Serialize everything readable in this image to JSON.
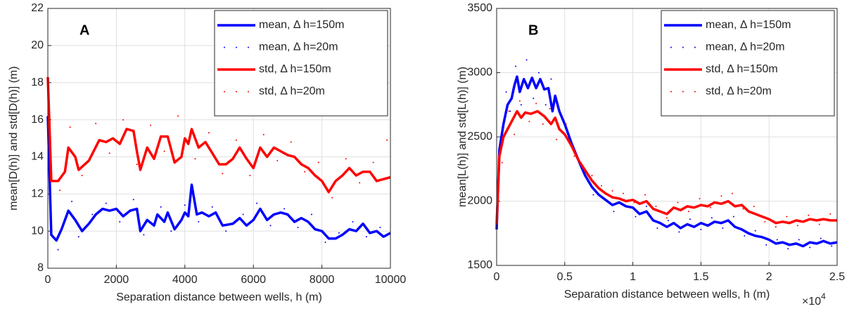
{
  "chart_data": [
    {
      "type": "line",
      "panel_label": "A",
      "xlabel": "Separation distance between wells, h (m)",
      "ylabel": "mean[D(h)] and std[D(h)] (m)",
      "xlim": [
        0,
        10000
      ],
      "ylim": [
        8,
        22
      ],
      "xticks": [
        0,
        2000,
        4000,
        6000,
        8000,
        10000
      ],
      "yticks": [
        8,
        10,
        12,
        14,
        16,
        18,
        20,
        22
      ],
      "grid": true,
      "legend": "upper right",
      "series": [
        {
          "name": "mean, Δ h=150m",
          "color": "#0000ff",
          "mode": "line",
          "x": [
            0,
            100,
            250,
            400,
            600,
            800,
            1000,
            1200,
            1400,
            1600,
            1800,
            2000,
            2200,
            2400,
            2600,
            2700,
            2900,
            3100,
            3200,
            3400,
            3500,
            3700,
            3900,
            4000,
            4100,
            4200,
            4350,
            4500,
            4700,
            4900,
            5100,
            5400,
            5600,
            5800,
            6000,
            6200,
            6400,
            6600,
            6800,
            7000,
            7200,
            7400,
            7600,
            7800,
            8000,
            8200,
            8400,
            8600,
            8800,
            9000,
            9200,
            9400,
            9600,
            9800,
            10000
          ],
          "values": [
            16.2,
            9.8,
            9.5,
            10.1,
            11.1,
            10.6,
            10.0,
            10.4,
            10.9,
            11.2,
            11.1,
            11.2,
            10.8,
            11.1,
            11.2,
            10.0,
            10.6,
            10.3,
            10.9,
            10.5,
            11.0,
            10.1,
            10.6,
            11.0,
            10.8,
            12.5,
            10.9,
            11.0,
            10.8,
            11.0,
            10.3,
            10.4,
            10.7,
            10.3,
            10.6,
            11.2,
            10.6,
            10.9,
            11.0,
            10.9,
            10.5,
            10.7,
            10.5,
            10.1,
            10.0,
            9.6,
            9.6,
            9.8,
            10.1,
            10.0,
            10.4,
            9.9,
            10.0,
            9.7,
            9.9
          ]
        },
        {
          "name": "mean, Δ h=20m",
          "color": "#0000ff",
          "mode": "markers",
          "x": [
            50,
            300,
            500,
            700,
            900,
            1300,
            1700,
            2100,
            2500,
            2800,
            3300,
            3600,
            4000,
            4400,
            4800,
            5200,
            5700,
            6100,
            6500,
            6900,
            7300,
            7700,
            8100,
            8500,
            8900,
            9300,
            9700
          ],
          "values": [
            12.5,
            9.0,
            10.6,
            11.6,
            9.7,
            10.9,
            11.5,
            10.5,
            11.7,
            9.8,
            11.3,
            10.0,
            11.4,
            10.5,
            11.3,
            10.0,
            10.9,
            11.5,
            10.3,
            11.2,
            10.2,
            10.9,
            9.4,
            9.9,
            10.5,
            9.7,
            10.2
          ]
        },
        {
          "name": "std, Δ h=150m",
          "color": "#ff0000",
          "mode": "line",
          "x": [
            0,
            100,
            300,
            500,
            600,
            800,
            900,
            1200,
            1500,
            1700,
            1900,
            2100,
            2300,
            2500,
            2600,
            2700,
            2900,
            3100,
            3300,
            3500,
            3700,
            3900,
            4000,
            4100,
            4200,
            4400,
            4600,
            4800,
            5000,
            5200,
            5400,
            5600,
            5800,
            6000,
            6200,
            6400,
            6600,
            6800,
            7000,
            7200,
            7400,
            7600,
            7800,
            8000,
            8200,
            8400,
            8600,
            8800,
            9000,
            9200,
            9400,
            9600,
            9800,
            10000
          ],
          "values": [
            18.3,
            12.7,
            12.7,
            13.2,
            14.5,
            14.0,
            13.3,
            13.8,
            14.9,
            14.8,
            15.0,
            14.7,
            15.5,
            15.4,
            14.3,
            13.3,
            14.5,
            13.9,
            15.1,
            15.1,
            13.7,
            14.0,
            15.0,
            14.7,
            15.5,
            14.5,
            14.8,
            14.2,
            13.6,
            13.6,
            13.9,
            14.5,
            13.9,
            13.4,
            14.5,
            14.0,
            14.5,
            14.3,
            14.1,
            14.0,
            13.6,
            13.4,
            13.0,
            12.7,
            12.1,
            12.7,
            13.0,
            13.4,
            13.0,
            13.2,
            13.2,
            12.7,
            12.8,
            12.9
          ]
        },
        {
          "name": "std, Δ h=20m",
          "color": "#ff0000",
          "mode": "markers",
          "x": [
            50,
            350,
            650,
            1000,
            1400,
            1800,
            2200,
            2600,
            3000,
            3400,
            3800,
            4300,
            4700,
            5100,
            5500,
            5900,
            6300,
            6700,
            7100,
            7500,
            7900,
            8300,
            8700,
            9100,
            9500,
            9900
          ],
          "values": [
            14.5,
            12.2,
            15.6,
            13.0,
            15.8,
            14.2,
            16.0,
            13.6,
            15.7,
            14.3,
            16.2,
            13.9,
            15.3,
            13.1,
            14.9,
            13.0,
            15.2,
            13.8,
            14.8,
            13.2,
            13.7,
            11.8,
            13.9,
            12.6,
            13.7,
            14.9
          ]
        }
      ]
    },
    {
      "type": "line",
      "panel_label": "B",
      "xlabel": "Separation distance between wells, h (m)",
      "ylabel": "mean[L(h)] and std[L(h)] (m)",
      "x_multiplier": "×10",
      "x_multiplier_exponent": "4",
      "xlim": [
        0,
        25000
      ],
      "ylim": [
        1500,
        3500
      ],
      "xticks": [
        0,
        {
          "value": 5000,
          "label": "0.5"
        },
        {
          "value": 10000,
          "label": "1"
        },
        {
          "value": 15000,
          "label": "1.5"
        },
        {
          "value": 20000,
          "label": "2"
        },
        {
          "value": 25000,
          "label": "2.5"
        }
      ],
      "yticks": [
        1500,
        2000,
        2500,
        3000,
        3500
      ],
      "grid": true,
      "legend": "upper right",
      "series": [
        {
          "name": "mean, Δ h=150m",
          "color": "#0000ff",
          "mode": "line",
          "x": [
            0,
            200,
            500,
            800,
            1100,
            1300,
            1500,
            1700,
            2000,
            2300,
            2600,
            2900,
            3200,
            3500,
            3800,
            4100,
            4300,
            4600,
            5000,
            5500,
            6000,
            6500,
            7000,
            7500,
            8000,
            8500,
            9000,
            9500,
            10000,
            10500,
            11000,
            11500,
            12000,
            12500,
            13000,
            13500,
            14000,
            14500,
            15000,
            15500,
            16000,
            16500,
            17000,
            17500,
            18000,
            18500,
            19000,
            19500,
            20000,
            20500,
            21000,
            21500,
            22000,
            22500,
            23000,
            23500,
            24000,
            24500,
            25000
          ],
          "values": [
            1780,
            2400,
            2600,
            2750,
            2800,
            2900,
            2970,
            2850,
            2950,
            2880,
            2960,
            2880,
            2950,
            2870,
            2880,
            2700,
            2820,
            2700,
            2600,
            2450,
            2320,
            2200,
            2110,
            2050,
            2010,
            1970,
            1990,
            1960,
            1950,
            1900,
            1920,
            1850,
            1830,
            1800,
            1830,
            1790,
            1820,
            1800,
            1830,
            1810,
            1840,
            1830,
            1850,
            1800,
            1780,
            1750,
            1730,
            1720,
            1700,
            1670,
            1680,
            1660,
            1670,
            1650,
            1680,
            1670,
            1690,
            1670,
            1680
          ]
        },
        {
          "name": "mean, Δ h=20m",
          "color": "#0000ff",
          "mode": "markers",
          "x": [
            300,
            700,
            1000,
            1400,
            1800,
            2200,
            2700,
            3100,
            3600,
            4000,
            4500,
            5200,
            5800,
            6400,
            7100,
            7800,
            8600,
            9400,
            10200,
            11000,
            11800,
            12600,
            13400,
            14200,
            15000,
            15800,
            16600,
            17400,
            18200,
            19000,
            19800,
            20600,
            21400,
            22200,
            23000,
            23800,
            24600
          ],
          "values": [
            2500,
            2850,
            2700,
            3050,
            2750,
            3100,
            2800,
            3000,
            2750,
            2950,
            2600,
            2550,
            2380,
            2250,
            2050,
            2080,
            1920,
            2010,
            1880,
            1960,
            1790,
            1850,
            1760,
            1860,
            1780,
            1870,
            1790,
            1880,
            1730,
            1770,
            1660,
            1700,
            1630,
            1700,
            1640,
            1710,
            1650
          ]
        },
        {
          "name": "std, Δ h=150m",
          "color": "#ff0000",
          "mode": "line",
          "x": [
            0,
            200,
            500,
            800,
            1200,
            1500,
            1800,
            2100,
            2500,
            3000,
            3500,
            4000,
            4300,
            4600,
            5000,
            5500,
            6000,
            6500,
            7000,
            7500,
            8000,
            8500,
            9000,
            9500,
            10000,
            10500,
            11000,
            11500,
            12000,
            12500,
            13000,
            13500,
            14000,
            14500,
            15000,
            15500,
            16000,
            16500,
            17000,
            17500,
            18000,
            18500,
            19000,
            19500,
            20000,
            20500,
            21000,
            21500,
            22000,
            22500,
            23000,
            23500,
            24000,
            24500,
            25000
          ],
          "values": [
            1820,
            2350,
            2500,
            2560,
            2640,
            2700,
            2650,
            2690,
            2680,
            2700,
            2660,
            2600,
            2650,
            2560,
            2520,
            2430,
            2320,
            2240,
            2160,
            2100,
            2060,
            2030,
            2020,
            2000,
            2010,
            1980,
            2000,
            1940,
            1920,
            1900,
            1950,
            1930,
            1960,
            1950,
            1970,
            1960,
            1990,
            1980,
            2000,
            1960,
            1970,
            1920,
            1900,
            1880,
            1860,
            1830,
            1840,
            1830,
            1850,
            1840,
            1860,
            1850,
            1860,
            1850,
            1850
          ]
        },
        {
          "name": "std, Δ h=20m",
          "color": "#ff0000",
          "mode": "markers",
          "x": [
            400,
            900,
            1300,
            1700,
            2400,
            2900,
            3400,
            3900,
            4400,
            5100,
            5700,
            6300,
            7000,
            7700,
            8500,
            9300,
            10100,
            10900,
            11700,
            12500,
            13300,
            14100,
            14900,
            15700,
            16500,
            17300,
            18100,
            18900,
            19700,
            20500,
            21300,
            22100,
            22900,
            23700,
            24500
          ],
          "values": [
            2300,
            2700,
            2520,
            2780,
            2620,
            2760,
            2600,
            2720,
            2480,
            2600,
            2350,
            2280,
            2200,
            2120,
            2080,
            2060,
            1990,
            2050,
            1960,
            1870,
            1990,
            1920,
            2020,
            1950,
            2040,
            2060,
            1940,
            1960,
            1840,
            1800,
            1880,
            1810,
            1890,
            1820,
            1900
          ]
        }
      ]
    }
  ]
}
